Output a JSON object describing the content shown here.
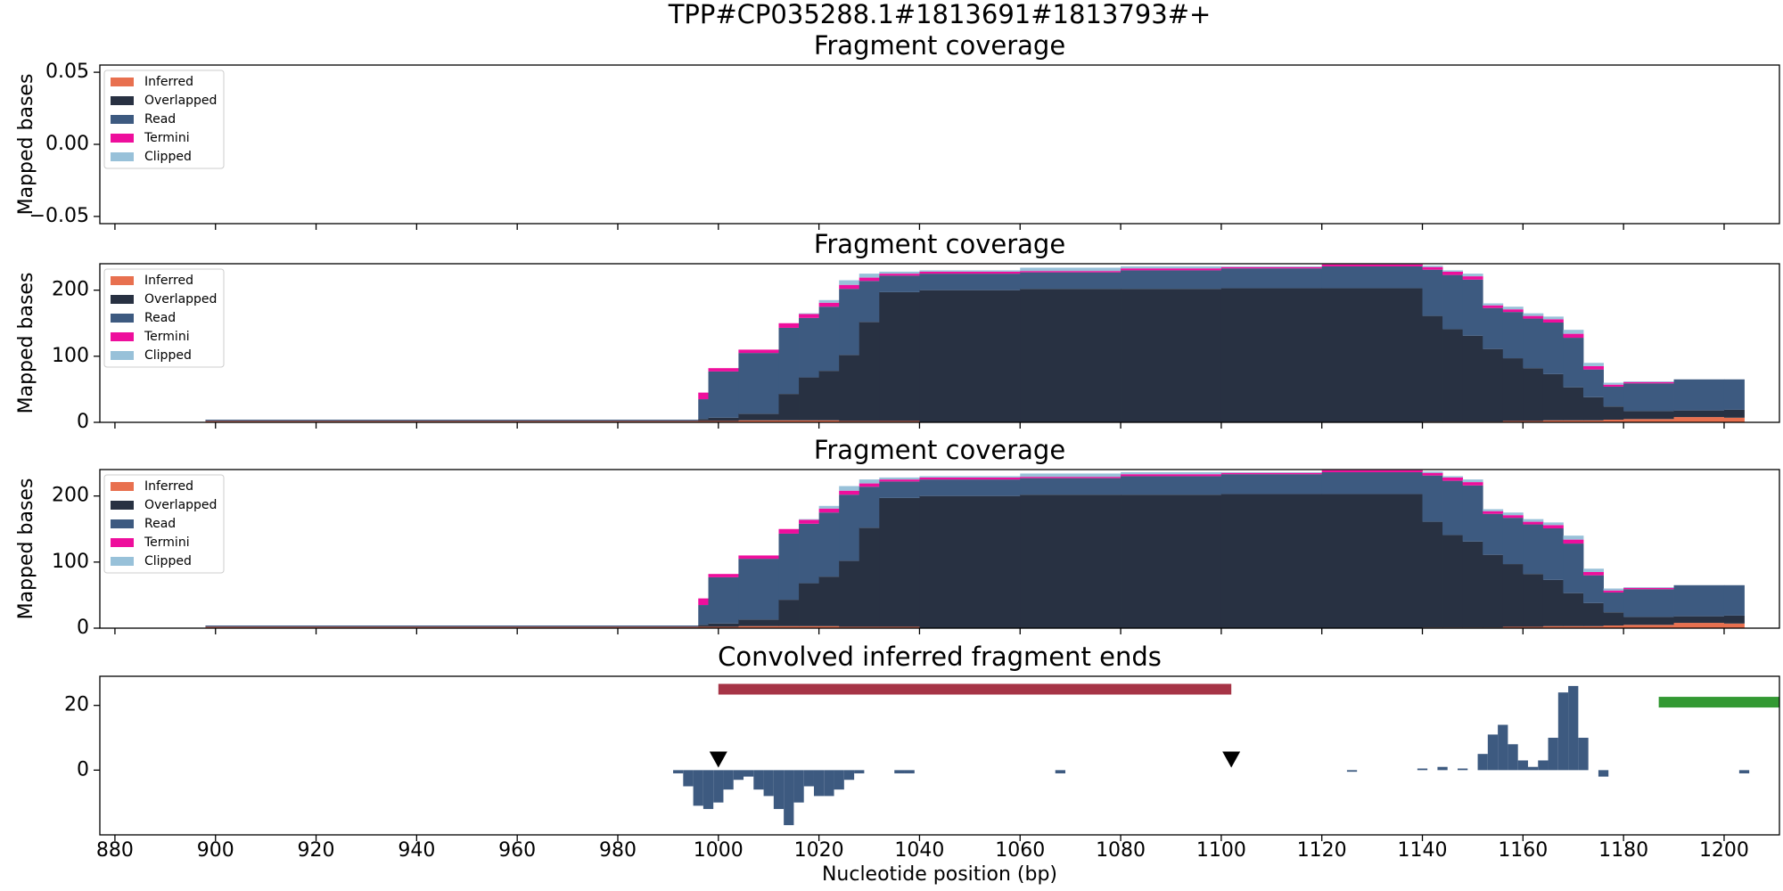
{
  "title": "TPP#CP035288.1#1813691#1813793#+",
  "xlabel": "Nucleotide position (bp)",
  "chart_data": [
    {
      "type": "histogram",
      "stacked": true,
      "title": "Fragment coverage",
      "ylabel": "Mapped bases",
      "xlim": [
        877,
        1211
      ],
      "ylim": [
        -0.055,
        0.055
      ],
      "yticks": [
        0.05,
        {
          "value": 0,
          "label": "0.00"
        },
        {
          "value": -0.05,
          "label": "−0.05"
        }
      ],
      "legend": "upper left",
      "bins": [],
      "series": [
        {
          "name": "Inferred",
          "color": "#e8704f",
          "values": []
        },
        {
          "name": "Overlapped",
          "color": "#283142",
          "values": []
        },
        {
          "name": "Read",
          "color": "#3d5a80",
          "values": []
        },
        {
          "name": "Termini",
          "color": "#ee0e9c",
          "values": []
        },
        {
          "name": "Clipped",
          "color": "#98c1d9",
          "values": []
        }
      ]
    },
    {
      "type": "histogram",
      "stacked": true,
      "title": "Fragment coverage",
      "ylabel": "Mapped bases",
      "xlim": [
        877,
        1211
      ],
      "ylim": [
        0,
        240
      ],
      "yticks": [
        0,
        100,
        200
      ],
      "legend": "upper left",
      "bins": [
        898,
        996,
        998,
        1004,
        1012,
        1016,
        1020,
        1024,
        1028,
        1032,
        1040,
        1060,
        1080,
        1100,
        1120,
        1140,
        1144,
        1148,
        1152,
        1156,
        1160,
        1164,
        1168,
        1172,
        1176,
        1180,
        1190,
        1200,
        1204
      ],
      "series": [
        {
          "name": "Inferred",
          "color": "#e8704f",
          "values": [
            2,
            2,
            2,
            3,
            3,
            3,
            3,
            2,
            2,
            2,
            0,
            0,
            0,
            0,
            0,
            1,
            1,
            1,
            1,
            2,
            2,
            3,
            3,
            3,
            4,
            5,
            8,
            7
          ]
        },
        {
          "name": "Overlapped",
          "color": "#283142",
          "values": [
            0,
            3,
            5,
            10,
            40,
            65,
            75,
            100,
            150,
            195,
            200,
            202,
            202,
            203,
            203,
            160,
            140,
            130,
            110,
            95,
            80,
            70,
            50,
            35,
            20,
            12,
            10,
            12
          ]
        },
        {
          "name": "Read",
          "color": "#3d5a80",
          "values": [
            2,
            30,
            70,
            92,
            100,
            90,
            97,
            100,
            62,
            25,
            25,
            25,
            28,
            30,
            33,
            70,
            82,
            85,
            62,
            70,
            75,
            78,
            75,
            42,
            30,
            42,
            47,
            46
          ]
        },
        {
          "name": "Termini",
          "color": "#ee0e9c",
          "values": [
            0,
            10,
            5,
            5,
            7,
            6,
            6,
            6,
            5,
            3,
            3,
            2,
            3,
            2,
            3,
            4,
            5,
            5,
            4,
            4,
            4,
            5,
            6,
            5,
            3,
            2,
            0,
            0
          ]
        },
        {
          "name": "Clipped",
          "color": "#98c1d9",
          "values": [
            0,
            0,
            0,
            0,
            0,
            1,
            4,
            7,
            6,
            3,
            2,
            5,
            3,
            1,
            0,
            2,
            2,
            4,
            3,
            4,
            4,
            4,
            6,
            5,
            3,
            1,
            0,
            0
          ]
        }
      ]
    },
    {
      "type": "histogram",
      "stacked": true,
      "title": "Fragment coverage",
      "ylabel": "Mapped bases",
      "xlim": [
        877,
        1211
      ],
      "ylim": [
        0,
        240
      ],
      "yticks": [
        0,
        100,
        200
      ],
      "legend": "upper left",
      "bins": [
        898,
        996,
        998,
        1004,
        1012,
        1016,
        1020,
        1024,
        1028,
        1032,
        1040,
        1060,
        1080,
        1100,
        1120,
        1140,
        1144,
        1148,
        1152,
        1156,
        1160,
        1164,
        1168,
        1172,
        1176,
        1180,
        1190,
        1200,
        1204
      ],
      "series": [
        {
          "name": "Inferred",
          "color": "#e8704f",
          "values": [
            2,
            2,
            2,
            3,
            3,
            3,
            3,
            2,
            2,
            2,
            0,
            0,
            0,
            0,
            0,
            1,
            1,
            1,
            1,
            2,
            2,
            3,
            3,
            3,
            4,
            5,
            8,
            7
          ]
        },
        {
          "name": "Overlapped",
          "color": "#283142",
          "values": [
            0,
            3,
            5,
            10,
            40,
            65,
            75,
            100,
            150,
            195,
            200,
            202,
            202,
            203,
            203,
            160,
            140,
            130,
            110,
            95,
            80,
            70,
            50,
            35,
            20,
            12,
            10,
            12
          ]
        },
        {
          "name": "Read",
          "color": "#3d5a80",
          "values": [
            2,
            30,
            70,
            92,
            100,
            90,
            97,
            100,
            62,
            25,
            25,
            25,
            28,
            30,
            33,
            70,
            82,
            85,
            62,
            70,
            75,
            78,
            75,
            42,
            30,
            42,
            47,
            46
          ]
        },
        {
          "name": "Termini",
          "color": "#ee0e9c",
          "values": [
            0,
            10,
            5,
            5,
            7,
            6,
            6,
            6,
            5,
            3,
            3,
            2,
            3,
            2,
            3,
            4,
            5,
            5,
            4,
            4,
            4,
            5,
            6,
            5,
            3,
            2,
            0,
            0
          ]
        },
        {
          "name": "Clipped",
          "color": "#98c1d9",
          "values": [
            0,
            0,
            0,
            0,
            0,
            1,
            4,
            7,
            6,
            3,
            2,
            5,
            3,
            1,
            0,
            2,
            2,
            4,
            3,
            4,
            4,
            4,
            6,
            5,
            3,
            1,
            0,
            0
          ]
        }
      ]
    },
    {
      "type": "bar",
      "title": "Convolved inferred fragment ends",
      "color": "#3d5a80",
      "xlim": [
        877,
        1211
      ],
      "ylim": [
        -20,
        29
      ],
      "yticks": [
        0,
        20
      ],
      "xticks": [
        880,
        900,
        920,
        940,
        960,
        980,
        1000,
        1020,
        1040,
        1060,
        1080,
        1100,
        1120,
        1140,
        1160,
        1180,
        1200
      ],
      "x": [
        992,
        994,
        996,
        998,
        1000,
        1002,
        1004,
        1006,
        1008,
        1010,
        1012,
        1014,
        1016,
        1018,
        1020,
        1022,
        1024,
        1026,
        1028,
        1036,
        1038,
        1068,
        1126,
        1140,
        1144,
        1148,
        1152,
        1154,
        1156,
        1158,
        1160,
        1162,
        1164,
        1166,
        1168,
        1170,
        1172,
        1176,
        1204
      ],
      "values": [
        -1,
        -5,
        -11,
        -12,
        -10,
        -6,
        -3,
        -2,
        -6,
        -8,
        -12,
        -17,
        -10,
        -5,
        -8,
        -8,
        -6,
        -3,
        -1,
        -1,
        -1,
        -1,
        -0.5,
        0.5,
        1,
        0.5,
        5,
        11,
        14,
        8,
        3,
        1,
        3,
        10,
        24,
        26,
        10,
        -2,
        -1
      ],
      "regions": [
        {
          "start": 1000,
          "end": 1102,
          "y": 25,
          "color": "#a63446"
        },
        {
          "start": 1187,
          "end": 1211,
          "y": 21,
          "color": "#339933"
        }
      ],
      "markers": [
        {
          "x": 1000,
          "y": 3
        },
        {
          "x": 1102,
          "y": 3
        }
      ]
    }
  ]
}
